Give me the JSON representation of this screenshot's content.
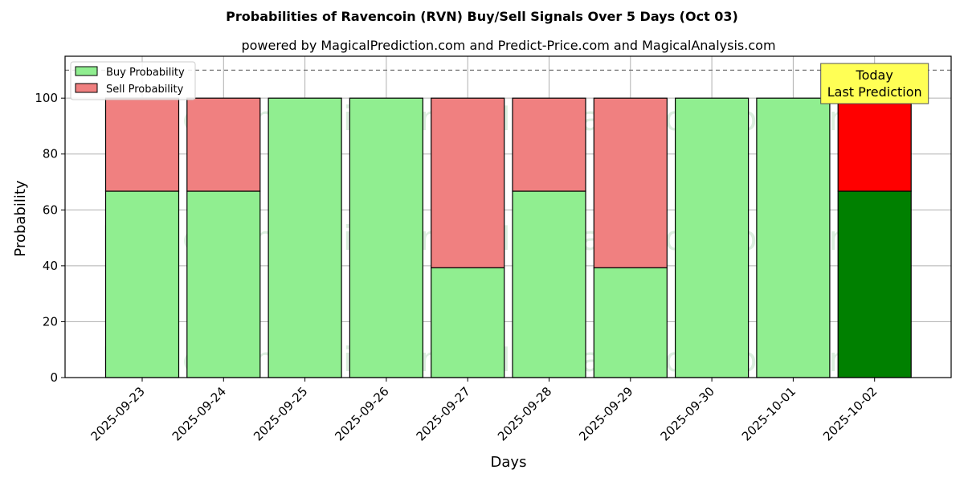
{
  "chart_data": {
    "type": "bar",
    "stacked": true,
    "title": "Probabilities of Ravencoin (RVN) Buy/Sell Signals Over 5 Days (Oct 03)",
    "subtitle": "powered by MagicalPrediction.com and Predict-Price.com and MagicalAnalysis.com",
    "xlabel": "Days",
    "ylabel": "Probability",
    "ylim": [
      0,
      115
    ],
    "yticks": [
      0,
      20,
      40,
      60,
      80,
      100
    ],
    "reference_line": 110,
    "grid": true,
    "legend_position": "top-left",
    "categories": [
      "2025-09-23",
      "2025-09-24",
      "2025-09-25",
      "2025-09-26",
      "2025-09-27",
      "2025-09-28",
      "2025-09-29",
      "2025-09-30",
      "2025-10-01",
      "2025-10-02"
    ],
    "series": [
      {
        "name": "Buy Probability",
        "color": "#90ee90",
        "highlight_color": "#008000",
        "values": [
          66.7,
          66.7,
          100,
          100,
          39.3,
          66.7,
          39.3,
          100,
          100,
          66.7
        ]
      },
      {
        "name": "Sell Probability",
        "color": "#f08080",
        "highlight_color": "#ff0000",
        "values": [
          33.3,
          33.3,
          0,
          0,
          60.7,
          33.3,
          60.7,
          0,
          0,
          33.3
        ]
      }
    ],
    "highlight_index": 9,
    "annotation": {
      "lines": [
        "Today",
        "Last Prediction"
      ],
      "background": "#ffff55"
    },
    "watermarks": [
      "MagicalAnalysis.com",
      "MagicalPrediction.com"
    ]
  }
}
